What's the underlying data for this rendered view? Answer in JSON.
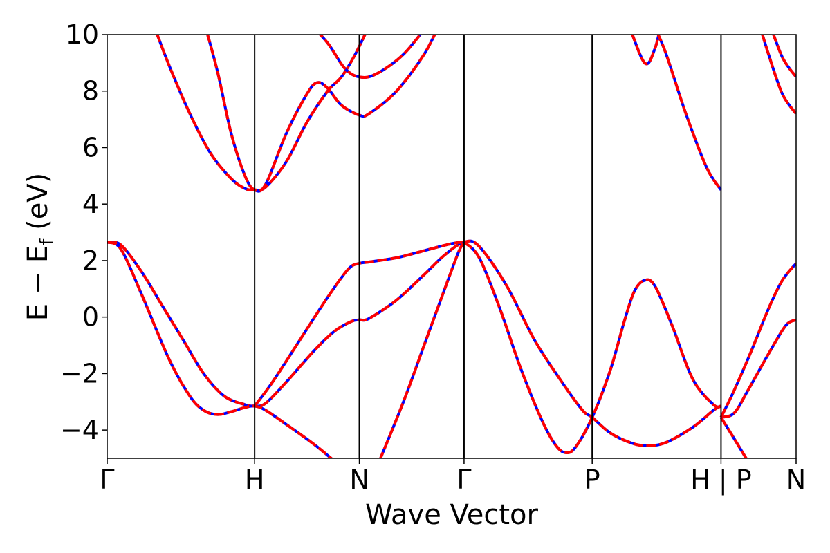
{
  "chart_data": {
    "type": "line",
    "title": "",
    "xlabel": "Wave Vector",
    "ylabel": "E − E",
    "ylabel_sub": "f",
    "ylabel_unit": " (eV)",
    "ylim": [
      -5,
      10
    ],
    "yticks": [
      -4,
      -2,
      0,
      2,
      4,
      6,
      8,
      10
    ],
    "ytick_labels": [
      "−4",
      "−2",
      "0",
      "2",
      "4",
      "6",
      "8",
      "10"
    ],
    "xlim": [
      0,
      10
    ],
    "xticks": [
      {
        "x": 0.0,
        "label": "Γ"
      },
      {
        "x": 2.14,
        "label": "H"
      },
      {
        "x": 3.66,
        "label": "N"
      },
      {
        "x": 5.18,
        "label": "Γ"
      },
      {
        "x": 7.04,
        "label": "P"
      },
      {
        "x": 8.91,
        "label": "H | P"
      },
      {
        "x": 10.0,
        "label": "N"
      }
    ],
    "vlines": [
      2.14,
      3.66,
      5.18,
      7.04,
      8.91
    ],
    "grid": false,
    "series": [
      {
        "color": "#0000ff",
        "linestyle": "solid"
      },
      {
        "color": "#ff0000",
        "linestyle": "dashed"
      }
    ],
    "bands": [
      [
        [
          0.0,
          2.65
        ],
        [
          0.2,
          2.55
        ],
        [
          0.5,
          1.6
        ],
        [
          0.8,
          0.4
        ],
        [
          1.1,
          -0.8
        ],
        [
          1.4,
          -2.0
        ],
        [
          1.7,
          -2.8
        ],
        [
          2.0,
          -3.1
        ],
        [
          2.14,
          -3.15
        ],
        [
          2.3,
          -3.05
        ],
        [
          2.6,
          -2.3
        ],
        [
          3.0,
          -1.2
        ],
        [
          3.3,
          -0.5
        ],
        [
          3.55,
          -0.15
        ],
        [
          3.66,
          -0.1
        ],
        [
          3.8,
          -0.05
        ],
        [
          4.2,
          0.6
        ],
        [
          4.6,
          1.5
        ],
        [
          4.9,
          2.2
        ],
        [
          5.18,
          2.65
        ],
        [
          5.4,
          2.5
        ],
        [
          5.8,
          1.1
        ],
        [
          6.2,
          -0.8
        ],
        [
          6.6,
          -2.3
        ],
        [
          6.9,
          -3.3
        ],
        [
          7.04,
          -3.55
        ],
        [
          7.3,
          -4.1
        ],
        [
          7.6,
          -4.45
        ],
        [
          7.82,
          -4.55
        ],
        [
          8.1,
          -4.45
        ],
        [
          8.5,
          -3.9
        ],
        [
          8.8,
          -3.3
        ],
        [
          8.91,
          -3.15
        ]
      ],
      [
        [
          0.0,
          2.65
        ],
        [
          0.2,
          2.4
        ],
        [
          0.5,
          0.8
        ],
        [
          0.9,
          -1.5
        ],
        [
          1.2,
          -2.8
        ],
        [
          1.4,
          -3.3
        ],
        [
          1.6,
          -3.45
        ],
        [
          1.8,
          -3.35
        ],
        [
          2.0,
          -3.2
        ],
        [
          2.14,
          -3.15
        ],
        [
          2.3,
          -3.3
        ],
        [
          2.6,
          -3.8
        ],
        [
          3.0,
          -4.5
        ],
        [
          3.3,
          -5.1
        ]
      ],
      [
        [
          2.14,
          -3.15
        ],
        [
          2.4,
          -2.3
        ],
        [
          2.8,
          -0.8
        ],
        [
          3.2,
          0.7
        ],
        [
          3.5,
          1.7
        ],
        [
          3.66,
          1.9
        ],
        [
          3.8,
          1.95
        ],
        [
          4.2,
          2.1
        ],
        [
          4.6,
          2.35
        ],
        [
          5.0,
          2.6
        ],
        [
          5.18,
          2.65
        ]
      ],
      [
        [
          3.95,
          -5.1
        ],
        [
          4.3,
          -3.0
        ],
        [
          4.6,
          -1.0
        ],
        [
          4.9,
          1.0
        ],
        [
          5.1,
          2.3
        ],
        [
          5.18,
          2.65
        ]
      ],
      [
        [
          5.18,
          2.65
        ],
        [
          5.4,
          2.1
        ],
        [
          5.7,
          0.3
        ],
        [
          6.0,
          -1.8
        ],
        [
          6.3,
          -3.6
        ],
        [
          6.5,
          -4.5
        ],
        [
          6.65,
          -4.8
        ],
        [
          6.8,
          -4.6
        ],
        [
          7.04,
          -3.55
        ],
        [
          7.3,
          -1.9
        ],
        [
          7.5,
          -0.2
        ],
        [
          7.65,
          0.9
        ],
        [
          7.8,
          1.3
        ],
        [
          7.95,
          1.1
        ],
        [
          8.2,
          -0.3
        ],
        [
          8.5,
          -2.2
        ],
        [
          8.8,
          -3.1
        ],
        [
          8.91,
          -3.15
        ]
      ],
      [
        [
          8.91,
          -3.55
        ],
        [
          9.1,
          -3.4
        ],
        [
          9.3,
          -2.6
        ],
        [
          9.6,
          -1.3
        ],
        [
          9.85,
          -0.3
        ],
        [
          10.0,
          -0.1
        ]
      ],
      [
        [
          8.91,
          -3.55
        ],
        [
          9.1,
          -2.6
        ],
        [
          9.35,
          -1.2
        ],
        [
          9.6,
          0.3
        ],
        [
          9.8,
          1.3
        ],
        [
          10.0,
          1.9
        ]
      ],
      [
        [
          8.91,
          -3.55
        ],
        [
          9.1,
          -4.3
        ],
        [
          9.3,
          -5.1
        ]
      ],
      [
        [
          0.65,
          10.5
        ],
        [
          0.9,
          8.9
        ],
        [
          1.2,
          7.2
        ],
        [
          1.5,
          5.8
        ],
        [
          1.8,
          4.9
        ],
        [
          2.0,
          4.55
        ],
        [
          2.14,
          4.5
        ],
        [
          2.3,
          4.6
        ],
        [
          2.6,
          5.5
        ],
        [
          2.9,
          6.9
        ],
        [
          3.2,
          8.0
        ],
        [
          3.4,
          8.5
        ],
        [
          3.6,
          9.3
        ],
        [
          3.8,
          10.3
        ]
      ],
      [
        [
          1.4,
          10.5
        ],
        [
          1.6,
          8.7
        ],
        [
          1.8,
          6.5
        ],
        [
          2.0,
          5.0
        ],
        [
          2.14,
          4.5
        ],
        [
          2.3,
          4.7
        ],
        [
          2.6,
          6.5
        ],
        [
          2.9,
          7.9
        ],
        [
          3.05,
          8.3
        ],
        [
          3.2,
          8.1
        ],
        [
          3.4,
          7.5
        ],
        [
          3.66,
          7.15
        ],
        [
          3.8,
          7.2
        ],
        [
          4.2,
          8.0
        ],
        [
          4.6,
          9.3
        ],
        [
          4.85,
          10.5
        ]
      ],
      [
        [
          2.9,
          10.5
        ],
        [
          3.2,
          9.7
        ],
        [
          3.45,
          8.8
        ],
        [
          3.66,
          8.5
        ],
        [
          3.9,
          8.6
        ],
        [
          4.3,
          9.3
        ],
        [
          4.7,
          10.5
        ]
      ],
      [
        [
          7.55,
          10.5
        ],
        [
          7.8,
          9.0
        ],
        [
          7.95,
          9.5
        ],
        [
          8.05,
          10.5
        ]
      ],
      [
        [
          7.9,
          10.5
        ],
        [
          8.1,
          9.4
        ],
        [
          8.4,
          7.2
        ],
        [
          8.7,
          5.3
        ],
        [
          8.91,
          4.5
        ]
      ],
      [
        [
          9.45,
          10.5
        ],
        [
          9.6,
          9.3
        ],
        [
          9.8,
          7.9
        ],
        [
          10.0,
          7.2
        ]
      ],
      [
        [
          9.6,
          10.5
        ],
        [
          9.8,
          9.2
        ],
        [
          10.0,
          8.5
        ]
      ]
    ]
  }
}
